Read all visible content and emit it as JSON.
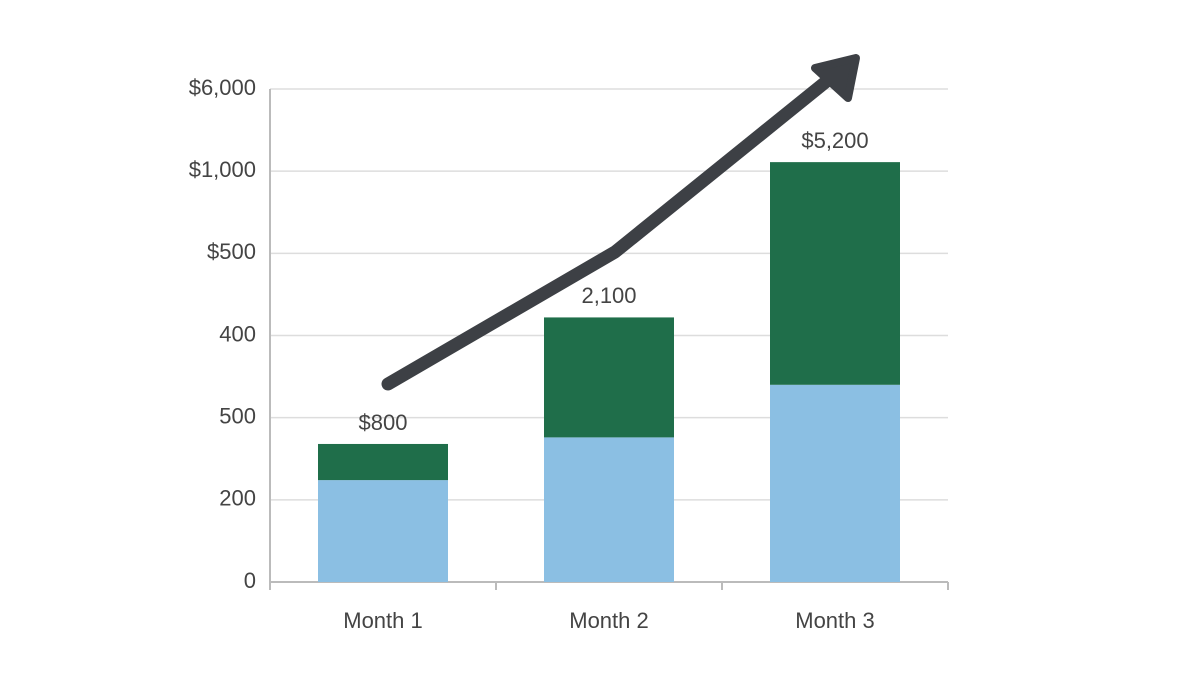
{
  "chart_data": {
    "type": "stacked_bar",
    "categories": [
      "Month 1",
      "Month 2",
      "Month 3"
    ],
    "series": [
      {
        "color": "#8bbfe3",
        "values": [
          1.24,
          1.76,
          2.4
        ]
      },
      {
        "color": "#1f6e4a",
        "values": [
          0.44,
          1.46,
          2.71
        ]
      }
    ],
    "annotations": [
      "$800",
      "2,100",
      "$5,200"
    ],
    "ylim": [
      0,
      6
    ],
    "yticks": [
      {
        "value": 0,
        "label": "0"
      },
      {
        "value": 1,
        "label": "200"
      },
      {
        "value": 2,
        "label": "500"
      },
      {
        "value": 3,
        "label": "400"
      },
      {
        "value": 4,
        "label": "$500"
      },
      {
        "value": 5,
        "label": "$1,000"
      },
      {
        "value": 6,
        "label": "$6,000"
      }
    ],
    "grid": true
  }
}
